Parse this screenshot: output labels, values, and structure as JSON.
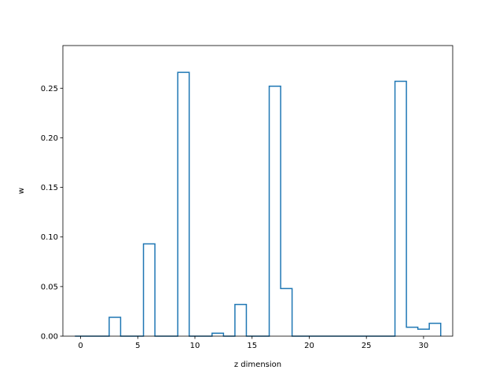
{
  "chart_data": {
    "type": "step",
    "title": "",
    "xlabel": "z dimension",
    "ylabel": "w",
    "xlim": [
      -1.55,
      32.55
    ],
    "ylim": [
      0,
      0.293
    ],
    "xticks": [
      0,
      5,
      10,
      15,
      20,
      25,
      30
    ],
    "xtick_labels": [
      "0",
      "5",
      "10",
      "15",
      "20",
      "25",
      "30"
    ],
    "yticks": [
      0.0,
      0.05,
      0.1,
      0.15,
      0.2,
      0.25
    ],
    "ytick_labels": [
      "0.00",
      "0.05",
      "0.10",
      "0.15",
      "0.20",
      "0.25"
    ],
    "x": [
      0,
      1,
      2,
      3,
      4,
      5,
      6,
      7,
      8,
      9,
      10,
      11,
      12,
      13,
      14,
      15,
      16,
      17,
      18,
      19,
      20,
      21,
      22,
      23,
      24,
      25,
      26,
      27,
      28,
      29,
      30,
      31
    ],
    "values": [
      0,
      0,
      0,
      0.019,
      0,
      0,
      0.093,
      0,
      0,
      0.266,
      0,
      0,
      0.003,
      0,
      0.032,
      0,
      0,
      0.252,
      0.048,
      0,
      0,
      0,
      0,
      0,
      0,
      0,
      0,
      0,
      0.257,
      0.009,
      0.007,
      0.013
    ],
    "line_color": "#1f77b4",
    "grid": false,
    "legend": "none"
  }
}
